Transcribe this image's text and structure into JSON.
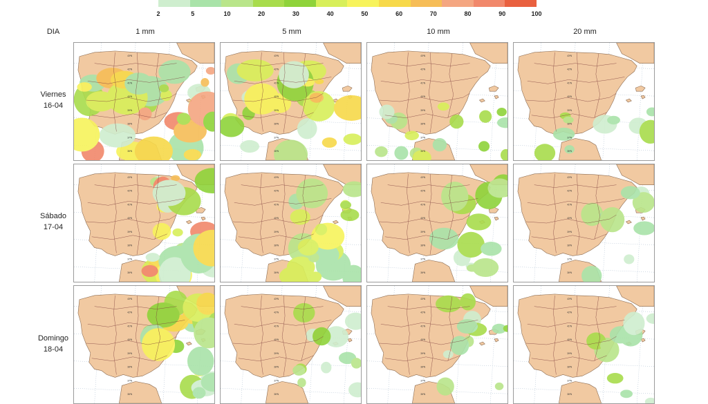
{
  "legend": {
    "ticks": [
      "2",
      "5",
      "10",
      "20",
      "30",
      "40",
      "50",
      "60",
      "70",
      "80",
      "90",
      "100"
    ],
    "colors": [
      "#cfeecf",
      "#a9e3a9",
      "#b9e58a",
      "#a8dc4c",
      "#8fd33a",
      "#d8ef5a",
      "#f7f35c",
      "#f7d94a",
      "#f6bd57",
      "#f4a681",
      "#f1886b",
      "#e9603f"
    ]
  },
  "header": {
    "dia": "DIA",
    "columns": [
      "1 mm",
      "5 mm",
      "10 mm",
      "20 mm"
    ]
  },
  "rows": [
    {
      "day": "Viernes",
      "date": "16-04"
    },
    {
      "day": "Sábado",
      "date": "17-04"
    },
    {
      "day": "Domingo",
      "date": "18-04"
    }
  ],
  "map": {
    "land_color": "#f1c9a1",
    "sea_color": "#ffffff",
    "border_color": "#7a3a3a",
    "grid_color": "#9fb3c8",
    "lat_labels": [
      "43ºN",
      "42ºN",
      "41ºN",
      "40ºN",
      "39ºN",
      "38ºN",
      "37ºN",
      "36ºN"
    ]
  },
  "panels": [
    {
      "row": 0,
      "col": 0,
      "name": "viernes-1mm",
      "intensity": 0.95,
      "focus": "south-east"
    },
    {
      "row": 0,
      "col": 1,
      "name": "viernes-5mm",
      "intensity": 0.65,
      "focus": "south-east"
    },
    {
      "row": 0,
      "col": 2,
      "name": "viernes-10mm",
      "intensity": 0.4,
      "focus": "south"
    },
    {
      "row": 0,
      "col": 3,
      "name": "viernes-20mm",
      "intensity": 0.15,
      "focus": "south"
    },
    {
      "row": 1,
      "col": 0,
      "name": "sabado-1mm",
      "intensity": 0.85,
      "focus": "east"
    },
    {
      "row": 1,
      "col": 1,
      "name": "sabado-5mm",
      "intensity": 0.55,
      "focus": "east"
    },
    {
      "row": 1,
      "col": 2,
      "name": "sabado-10mm",
      "intensity": 0.3,
      "focus": "east"
    },
    {
      "row": 1,
      "col": 3,
      "name": "sabado-20mm",
      "intensity": 0.12,
      "focus": "east"
    },
    {
      "row": 2,
      "col": 0,
      "name": "domingo-1mm",
      "intensity": 0.6,
      "focus": "east"
    },
    {
      "row": 2,
      "col": 1,
      "name": "domingo-5mm",
      "intensity": 0.3,
      "focus": "east"
    },
    {
      "row": 2,
      "col": 2,
      "name": "domingo-10mm",
      "intensity": 0.22,
      "focus": "east"
    },
    {
      "row": 2,
      "col": 3,
      "name": "domingo-20mm",
      "intensity": 0.15,
      "focus": "east"
    }
  ]
}
